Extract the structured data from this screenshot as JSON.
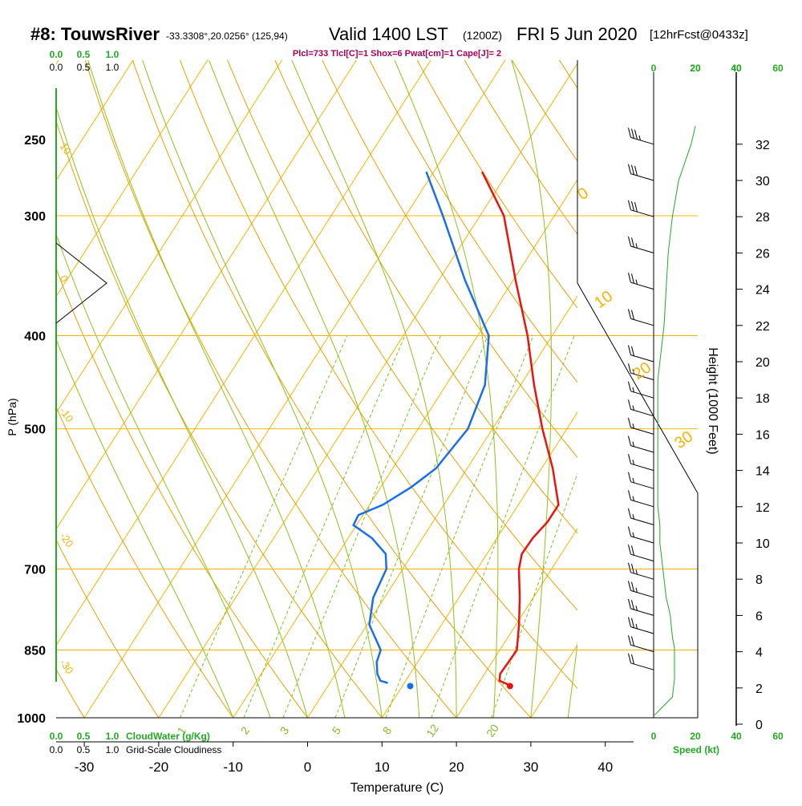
{
  "header": {
    "station": "#8: TouwsRiver",
    "coords": "-33.3308°,20.0256° (125,94)",
    "valid": "Valid 1400 LST",
    "utc": "(1200Z)",
    "date": "FRI 5 Jun 2020",
    "forecast": "[12hrFcst@0433z]"
  },
  "indices": "Plcl=733 Tlcl[C]=1 Shox=6 Pwat[cm]=1 Cape[J]= 2",
  "colors": {
    "temperature": "#e8150f",
    "dewpoint": "#1a6fe8",
    "isotherm": "#f4b400",
    "dry_adiabat": "#e8a000",
    "moist_adiabat": "#8cc318",
    "mixing_ratio": "#7fbf1f",
    "green_label": "#22aa22",
    "indices": "#aa0055"
  },
  "chart_data": {
    "type": "line",
    "title": "",
    "xlabel": "Temperature (C)",
    "ylabel": "P (hPa)",
    "y2label": "Height (1000 Feet)",
    "x_ticks": [
      "-30",
      "-20",
      "-10",
      "0",
      "10",
      "20",
      "30",
      "40"
    ],
    "p_ticks": [
      "250",
      "300",
      "400",
      "500",
      "700",
      "850",
      "1000"
    ],
    "height_ticks": [
      "0",
      "2",
      "4",
      "6",
      "8",
      "10",
      "12",
      "14",
      "16",
      "18",
      "20",
      "22",
      "24",
      "26",
      "28",
      "30",
      "32"
    ],
    "cloud_scale_top_green": [
      "0.0",
      "0.5",
      "1.0"
    ],
    "cloud_scale_top_black": [
      "0.0",
      "0.5",
      "1.0"
    ],
    "cloud_scale_bottom_green": [
      "0.0",
      "0.5",
      "1.0"
    ],
    "cloud_scale_bottom_black": [
      "0.0",
      "0.5",
      "1.0"
    ],
    "cloudwater_label": "CloudWater (g/Kg)",
    "cloudiness_label": "Grid-Scale Cloudiness",
    "speed_ticks_top_black": [
      "0",
      "20",
      "40"
    ],
    "speed_ticks_top_green": [
      "20",
      "40",
      "60"
    ],
    "speed_ticks_bottom_black": [
      "0",
      "20",
      "40"
    ],
    "speed_ticks_bottom_green": [
      "60"
    ],
    "speed_label": "Speed (kt)",
    "isotherm_labels": [
      "0",
      "10",
      "20",
      "30"
    ],
    "isotherm_labels_left": [
      "10",
      "0",
      "-10",
      "-20",
      "-30"
    ],
    "mixing_ratio_labels": [
      "1",
      "2",
      "3",
      "5",
      "8",
      "12",
      "20"
    ],
    "series": [
      {
        "name": "Temperature",
        "points": [
          [
            925,
            24.4
          ],
          [
            915,
            22.6
          ],
          [
            900,
            22.1
          ],
          [
            875,
            22.2
          ],
          [
            850,
            22.3
          ],
          [
            800,
            20.4
          ],
          [
            750,
            18.2
          ],
          [
            700,
            15.6
          ],
          [
            675,
            14.7
          ],
          [
            650,
            14.8
          ],
          [
            625,
            15.4
          ],
          [
            600,
            15.4
          ],
          [
            550,
            11.5
          ],
          [
            500,
            6.7
          ],
          [
            450,
            1.8
          ],
          [
            400,
            -3.3
          ],
          [
            350,
            -9.7
          ],
          [
            300,
            -16.8
          ],
          [
            270,
            -23.5
          ]
        ]
      },
      {
        "name": "Dewpoint",
        "points": [
          [
            920,
            7.8
          ],
          [
            915,
            6.6
          ],
          [
            900,
            5.6
          ],
          [
            875,
            4.5
          ],
          [
            850,
            4.0
          ],
          [
            800,
            0.3
          ],
          [
            750,
            -1.5
          ],
          [
            700,
            -2.2
          ],
          [
            675,
            -3.6
          ],
          [
            650,
            -6.8
          ],
          [
            630,
            -10.4
          ],
          [
            615,
            -10.6
          ],
          [
            600,
            -8.2
          ],
          [
            575,
            -5.9
          ],
          [
            550,
            -4.2
          ],
          [
            500,
            -3.3
          ],
          [
            450,
            -4.8
          ],
          [
            400,
            -8.5
          ],
          [
            350,
            -16.5
          ],
          [
            300,
            -25.0
          ],
          [
            270,
            -31.0
          ]
        ]
      }
    ],
    "surface_temperature": 24.4,
    "surface_dewpoint": 11.0,
    "wind_speed_profile": [
      [
        0.5,
        0.5
      ],
      [
        0.8,
        3
      ],
      [
        1.5,
        9
      ],
      [
        2.5,
        10
      ],
      [
        3.5,
        10
      ],
      [
        4.2,
        10
      ],
      [
        4.8,
        9
      ],
      [
        6,
        8
      ],
      [
        7,
        6
      ],
      [
        8,
        5
      ],
      [
        9,
        4
      ],
      [
        10,
        3
      ],
      [
        11,
        3
      ],
      [
        12,
        2
      ],
      [
        13,
        2
      ],
      [
        14,
        2
      ],
      [
        15,
        2
      ],
      [
        16,
        2
      ],
      [
        17,
        2
      ],
      [
        18,
        2
      ],
      [
        19,
        2
      ],
      [
        20,
        3
      ],
      [
        22,
        5
      ],
      [
        24,
        6
      ],
      [
        26,
        7
      ],
      [
        28,
        9
      ],
      [
        30,
        12
      ],
      [
        32,
        18
      ],
      [
        33,
        20
      ]
    ],
    "wind_barbs": [
      {
        "h": 3,
        "kt": 20
      },
      {
        "h": 4,
        "kt": 22
      },
      {
        "h": 5,
        "kt": 25
      },
      {
        "h": 6,
        "kt": 25
      },
      {
        "h": 7,
        "kt": 25
      },
      {
        "h": 8,
        "kt": 25
      },
      {
        "h": 9,
        "kt": 20
      },
      {
        "h": 10,
        "kt": 15
      },
      {
        "h": 11,
        "kt": 15
      },
      {
        "h": 12,
        "kt": 15
      },
      {
        "h": 13,
        "kt": 15
      },
      {
        "h": 14,
        "kt": 15
      },
      {
        "h": 15,
        "kt": 15
      },
      {
        "h": 16,
        "kt": 15
      },
      {
        "h": 17,
        "kt": 15
      },
      {
        "h": 18,
        "kt": 15
      },
      {
        "h": 19,
        "kt": 15
      },
      {
        "h": 20,
        "kt": 20
      },
      {
        "h": 22,
        "kt": 20
      },
      {
        "h": 24,
        "kt": 25
      },
      {
        "h": 26,
        "kt": 25
      },
      {
        "h": 28,
        "kt": 30
      },
      {
        "h": 30,
        "kt": 30
      },
      {
        "h": 32,
        "kt": 35
      }
    ]
  }
}
